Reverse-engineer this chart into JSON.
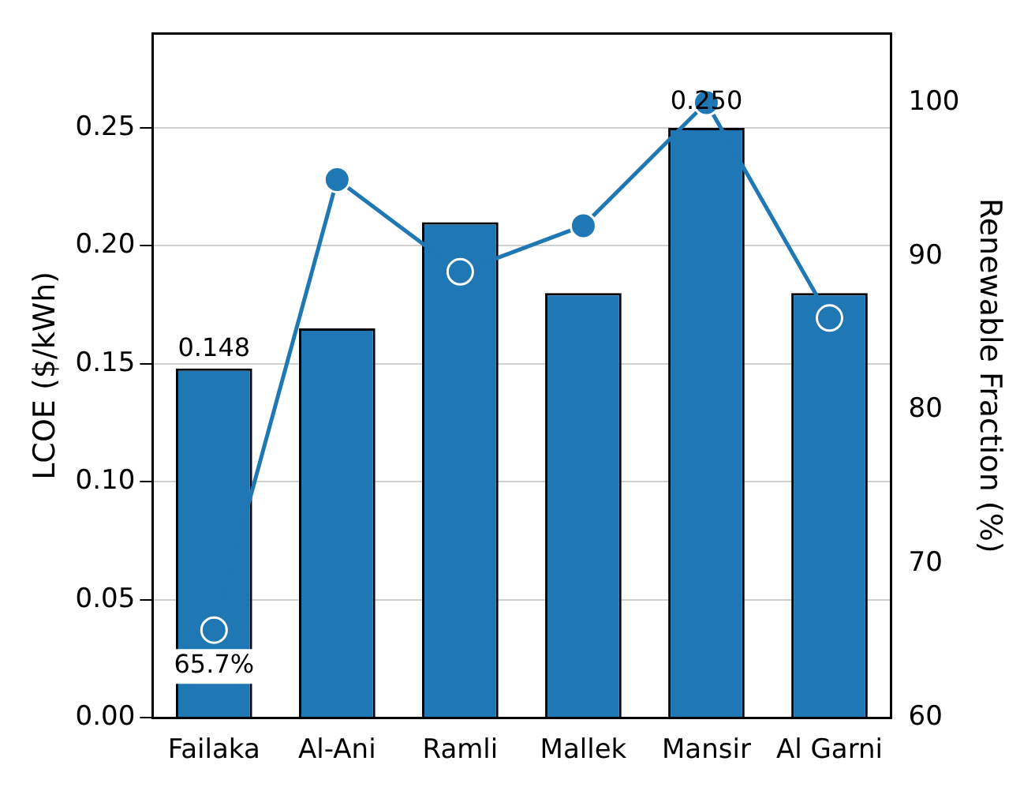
{
  "chart_data": {
    "type": "bar",
    "ylabel": "LCOE ($/kWh)",
    "y2label": "Renewable Fraction (%)",
    "categories": [
      "Failaka",
      "Al-Ani",
      "Ramli",
      "Mallek",
      "Mansir",
      "Al Garni"
    ],
    "series": [
      {
        "color": "#1f77b4",
        "values": [
          0.148,
          0.165,
          0.21,
          0.18,
          0.25,
          0.18
        ],
        "value_labels": [
          "0.148",
          null,
          null,
          null,
          "0.250",
          null
        ]
      },
      {
        "type": "line",
        "axis": "y2",
        "color": "#1f77b4",
        "values": [
          65.7,
          95,
          89,
          92,
          100,
          86
        ],
        "value_labels": [
          "65.7%",
          null,
          null,
          null,
          null,
          null
        ]
      }
    ],
    "ylim": [
      0,
      0.29
    ],
    "yticks": [
      {
        "value": 0,
        "label": "0.00"
      },
      {
        "value": 0.05,
        "label": "0.05"
      },
      {
        "value": 0.1,
        "label": "0.10"
      },
      {
        "value": 0.15,
        "label": "0.15"
      },
      {
        "value": 0.2,
        "label": "0.20"
      },
      {
        "value": 0.25,
        "label": "0.25"
      }
    ],
    "y2lim": [
      60,
      104.5
    ],
    "y2ticks": [
      60,
      70,
      80,
      90,
      100
    ],
    "grid": "y",
    "marker": "circle",
    "line_style": "solid",
    "legend": false
  }
}
